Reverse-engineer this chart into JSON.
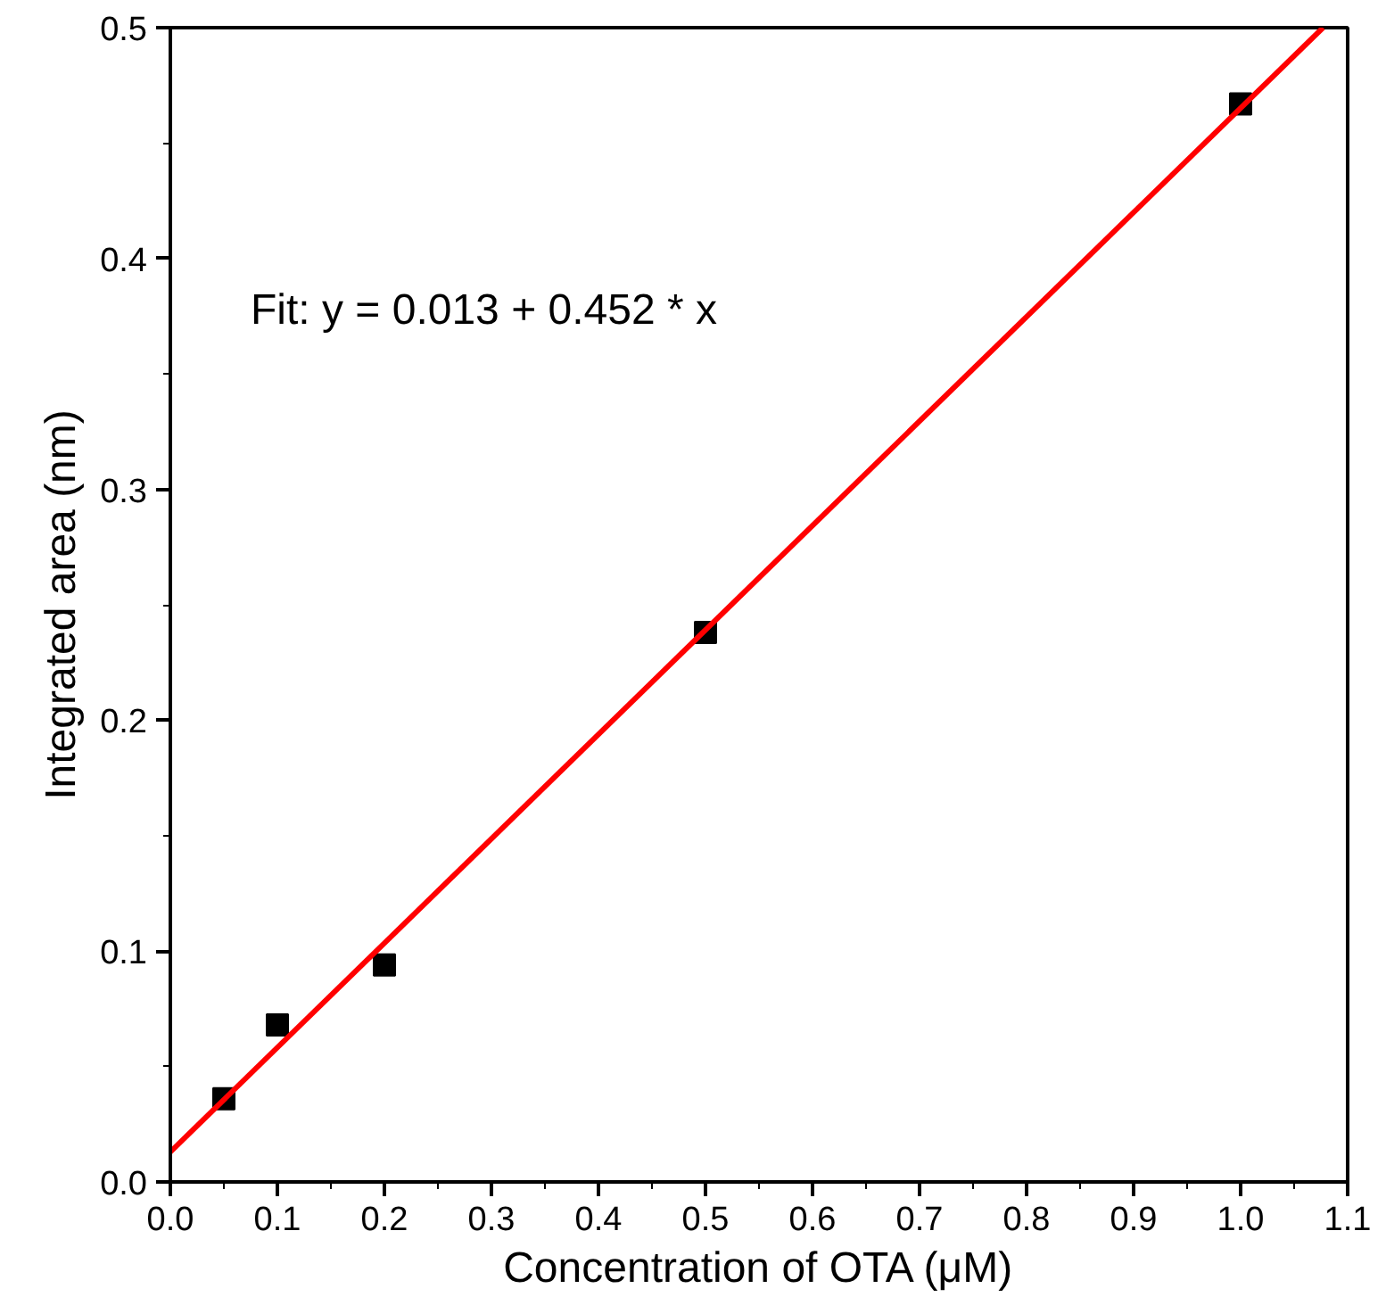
{
  "chart_data": {
    "type": "scatter",
    "xlabel": "Concentration of OTA (μM)",
    "ylabel": "Integrated area (nm)",
    "xlim": [
      0.0,
      1.1
    ],
    "ylim": [
      0.0,
      0.5
    ],
    "xticks": [
      {
        "value": 0,
        "label": "0.0"
      },
      0.1,
      0.2,
      0.3,
      0.4,
      0.5,
      0.6,
      0.7,
      0.8,
      0.9,
      {
        "value": 1,
        "label": "1.0"
      },
      1.1
    ],
    "yticks": [
      {
        "value": 0,
        "label": "0.0"
      },
      0.1,
      0.2,
      0.3,
      0.4,
      0.5
    ],
    "grid": false,
    "marker": "square",
    "annotations": [
      "Fit: y = 0.013 + 0.452 * x"
    ],
    "series": [
      {
        "color": "#000000",
        "x": [
          0.05,
          0.1,
          0.2,
          0.5,
          1.0
        ],
        "values": [
          0.036,
          0.068,
          0.094,
          0.238,
          0.467
        ]
      },
      {
        "type": "line",
        "color": "#ff0000",
        "marker": "none",
        "line_style": "solid",
        "x": [
          0.0,
          1.077
        ],
        "values": [
          0.013,
          0.5
        ]
      }
    ]
  }
}
